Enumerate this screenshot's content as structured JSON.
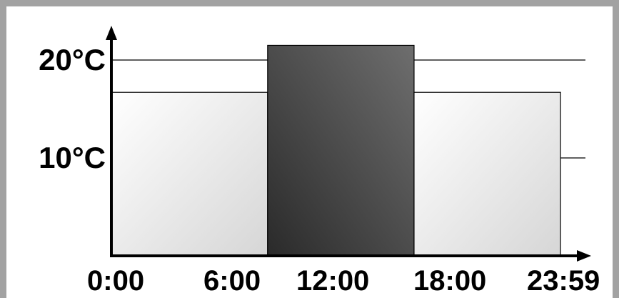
{
  "chart_data": {
    "type": "bar",
    "title": "",
    "xlabel": "",
    "ylabel": "",
    "x_ticks": [
      "0:00",
      "6:00",
      "12:00",
      "18:00",
      "23:59"
    ],
    "y_ticks": [
      "10°C",
      "20°C"
    ],
    "y_tick_values": [
      10,
      20
    ],
    "gridlines": [
      10,
      20
    ],
    "segments": [
      {
        "start": "0:00",
        "end": "8:00",
        "value": 16.7,
        "fill": "light"
      },
      {
        "start": "8:00",
        "end": "15:30",
        "value": 21.5,
        "fill": "dark"
      },
      {
        "start": "15:30",
        "end": "23:00",
        "value": 16.7,
        "fill": "light"
      }
    ],
    "x_range": [
      "0:00",
      "23:59"
    ],
    "ylim": [
      0,
      20
    ],
    "colors": {
      "light_fill_start": "#ffffff",
      "light_fill_end": "#d6d6d6",
      "dark_fill_start": "#2a2a2a",
      "dark_fill_end": "#6e6e6e",
      "frame": "#a2a2a2",
      "axis": "#000000"
    }
  }
}
